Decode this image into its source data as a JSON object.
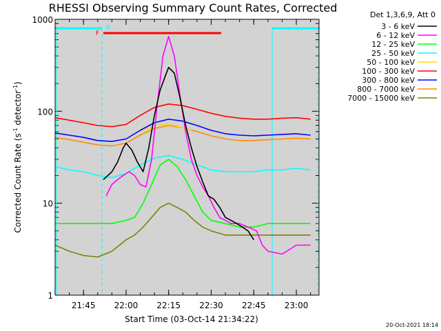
{
  "chart_data": {
    "type": "line",
    "title": "RHESSI Observing Summary Count Rates, Corrected",
    "xlabel": "Start Time (03-Oct-14 21:34:22)",
    "ylabel": "Corrected Count Rate (s⁻¹ detector⁻¹)",
    "ylabel_parts": {
      "main": "Corrected Count Rate (s",
      "exp1": "-1",
      "mid": " detector",
      "exp2": "-1",
      "end": ")"
    },
    "yscale": "log",
    "ylim": [
      1,
      1000
    ],
    "xlim": [
      "21:35",
      "23:08"
    ],
    "x_ticks": [
      "21:45",
      "22:00",
      "22:15",
      "22:30",
      "22:45",
      "23:00"
    ],
    "y_ticks": [
      "1",
      "10",
      "100",
      "1000"
    ],
    "legend_title": "Det 1,3,6,9, Att 0",
    "legend_position": "right, outside plot",
    "footer_date": "20-Oct-2021 18:14",
    "flag_labels": [
      "F",
      "N"
    ],
    "background_color": "#d3d3d3",
    "series": [
      {
        "name": "3 - 6 keV",
        "color": "#000000",
        "x": [
          "21:52",
          "21:55",
          "21:57",
          "21:59",
          "22:00",
          "22:02",
          "22:04",
          "22:06",
          "22:08",
          "22:10",
          "22:12",
          "22:14",
          "22:15",
          "22:17",
          "22:19",
          "22:21",
          "22:23",
          "22:25",
          "22:27",
          "22:29",
          "22:31",
          "22:33",
          "22:35",
          "22:37",
          "22:39",
          "22:41",
          "22:43",
          "22:45"
        ],
        "y": [
          18,
          22,
          28,
          40,
          45,
          38,
          28,
          22,
          40,
          90,
          170,
          250,
          300,
          260,
          140,
          70,
          40,
          25,
          17,
          12,
          11,
          9,
          7,
          6.5,
          6,
          5.5,
          5,
          4
        ]
      },
      {
        "name": "6 - 12 keV",
        "color": "#ff00ff",
        "x": [
          "21:53",
          "21:55",
          "21:57",
          "21:59",
          "22:01",
          "22:03",
          "22:05",
          "22:07",
          "22:09",
          "22:11",
          "22:13",
          "22:15",
          "22:17",
          "22:19",
          "22:21",
          "22:23",
          "22:25",
          "22:27",
          "22:29",
          "22:31",
          "22:33",
          "22:35",
          "22:37",
          "22:40",
          "22:43",
          "22:46",
          "22:48",
          "22:50",
          "22:55",
          "23:00",
          "23:05"
        ],
        "y": [
          12,
          16,
          18,
          20,
          22,
          20,
          16,
          15,
          30,
          120,
          400,
          650,
          400,
          150,
          60,
          30,
          20,
          15,
          12,
          9,
          7,
          6.5,
          6,
          6,
          5.5,
          5,
          3.5,
          3,
          2.8,
          3.5,
          3.5
        ]
      },
      {
        "name": "12 - 25 keV",
        "color": "#00ff00",
        "x": [
          "21:35",
          "21:40",
          "21:45",
          "21:50",
          "21:55",
          "22:00",
          "22:03",
          "22:06",
          "22:09",
          "22:12",
          "22:15",
          "22:18",
          "22:21",
          "22:24",
          "22:27",
          "22:30",
          "22:35",
          "22:40",
          "22:45",
          "22:50",
          "22:55",
          "23:00",
          "23:05"
        ],
        "y": [
          6,
          6,
          6,
          6,
          6,
          6.5,
          7,
          10,
          16,
          26,
          30,
          25,
          18,
          12,
          8,
          6.5,
          6,
          5.5,
          5.5,
          6,
          6,
          6,
          6
        ]
      },
      {
        "name": "25 - 50 keV",
        "color": "#00ffff",
        "x": [
          "21:35",
          "21:40",
          "21:45",
          "21:50",
          "21:55",
          "22:00",
          "22:05",
          "22:10",
          "22:15",
          "22:20",
          "22:25",
          "22:30",
          "22:35",
          "22:40",
          "22:45",
          "22:50",
          "22:55",
          "23:00",
          "23:05"
        ],
        "y": [
          25,
          23,
          22,
          20,
          19,
          21,
          26,
          31,
          33,
          30,
          26,
          23,
          22,
          22,
          22,
          23,
          23,
          24,
          23
        ]
      },
      {
        "name": "50 - 100 keV",
        "color": "#ffd700",
        "x": [
          "22:05",
          "22:08",
          "22:11",
          "22:14",
          "22:17",
          "22:20",
          "22:23"
        ],
        "y": [
          60,
          65,
          70,
          72,
          70,
          66,
          62
        ]
      },
      {
        "name": "100 - 300 keV",
        "color": "#ff0000",
        "x": [
          "21:35",
          "21:40",
          "21:45",
          "21:50",
          "21:55",
          "22:00",
          "22:05",
          "22:10",
          "22:15",
          "22:20",
          "22:25",
          "22:30",
          "22:35",
          "22:40",
          "22:45",
          "22:50",
          "22:55",
          "23:00",
          "23:05"
        ],
        "y": [
          85,
          80,
          75,
          70,
          68,
          72,
          90,
          110,
          120,
          115,
          105,
          95,
          88,
          84,
          82,
          82,
          84,
          85,
          82
        ]
      },
      {
        "name": "300 - 800 keV",
        "color": "#0000ff",
        "x": [
          "21:35",
          "21:40",
          "21:45",
          "21:50",
          "21:55",
          "22:00",
          "22:05",
          "22:10",
          "22:15",
          "22:20",
          "22:25",
          "22:30",
          "22:35",
          "22:40",
          "22:45",
          "22:50",
          "22:55",
          "23:00",
          "23:05"
        ],
        "y": [
          58,
          55,
          52,
          48,
          47,
          50,
          62,
          75,
          82,
          78,
          70,
          62,
          57,
          55,
          54,
          55,
          56,
          57,
          55
        ]
      },
      {
        "name": "800 - 7000 keV",
        "color": "#ff8c00",
        "x": [
          "21:35",
          "21:40",
          "21:45",
          "21:50",
          "21:55",
          "22:00",
          "22:05",
          "22:10",
          "22:15",
          "22:20",
          "22:25",
          "22:30",
          "22:35",
          "22:40",
          "22:45",
          "22:50",
          "22:55",
          "23:00",
          "23:05"
        ],
        "y": [
          52,
          49,
          46,
          43,
          42,
          45,
          55,
          65,
          70,
          66,
          60,
          54,
          50,
          48,
          48,
          49,
          50,
          51,
          50
        ]
      },
      {
        "name": "7000 - 15000 keV",
        "color": "#808000",
        "x": [
          "21:35",
          "21:40",
          "21:45",
          "21:50",
          "21:55",
          "22:00",
          "22:03",
          "22:06",
          "22:09",
          "22:12",
          "22:15",
          "22:18",
          "22:21",
          "22:24",
          "22:27",
          "22:30",
          "22:35",
          "22:40",
          "22:45",
          "22:50",
          "22:55",
          "23:00",
          "23:05"
        ],
        "y": [
          3.5,
          3,
          2.7,
          2.6,
          3,
          4,
          4.5,
          5.5,
          7,
          9,
          10,
          9,
          8,
          6.5,
          5.5,
          5,
          4.5,
          4.5,
          4.5,
          4.5,
          4.5,
          4.5,
          4.5
        ]
      }
    ]
  }
}
